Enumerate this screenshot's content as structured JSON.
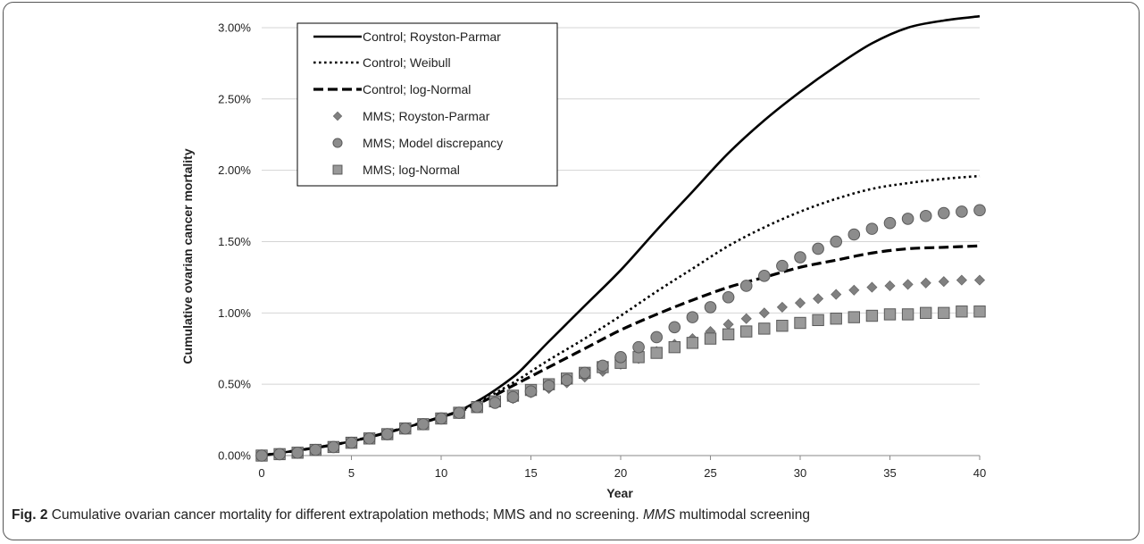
{
  "caption": {
    "label": "Fig. 2",
    "text": "Cumulative ovarian cancer mortality for different extrapolation methods; MMS and no screening.",
    "abbr": "MMS",
    "abbr_def": "multimodal screening"
  },
  "chart_data": {
    "type": "line",
    "title": "",
    "xlabel": "Year",
    "ylabel": "Cumulative ovarian cancer mortality",
    "xlim": [
      0,
      40
    ],
    "ylim": [
      0,
      0.031
    ],
    "x_ticks": [
      0,
      5,
      10,
      15,
      20,
      25,
      30,
      35,
      40
    ],
    "y_ticks": [
      0,
      0.005,
      0.01,
      0.015,
      0.02,
      0.025,
      0.03
    ],
    "y_tick_labels": [
      "0.00%",
      "0.50%",
      "1.00%",
      "1.50%",
      "2.00%",
      "2.50%",
      "3.00%"
    ],
    "grid": "horizontal",
    "legend_position": "top-left",
    "series": [
      {
        "name": "Control; Royston-Parmar",
        "style": "solid-line",
        "color": "#000000",
        "x": [
          0,
          5,
          10,
          12,
          14,
          15,
          16,
          18,
          20,
          22,
          24,
          26,
          28,
          30,
          32,
          34,
          36,
          38,
          40
        ],
        "y": [
          0,
          0.001,
          0.0027,
          0.0038,
          0.0055,
          0.0067,
          0.008,
          0.0105,
          0.013,
          0.0158,
          0.0185,
          0.0212,
          0.0235,
          0.0255,
          0.0273,
          0.0289,
          0.03,
          0.0305,
          0.0308
        ]
      },
      {
        "name": "Control; Weibull",
        "style": "dotted-line",
        "color": "#000000",
        "x": [
          0,
          5,
          10,
          12,
          14,
          16,
          18,
          20,
          22,
          24,
          26,
          28,
          30,
          32,
          34,
          36,
          38,
          40
        ],
        "y": [
          0,
          0.001,
          0.0027,
          0.0037,
          0.0051,
          0.0067,
          0.0082,
          0.0098,
          0.0115,
          0.0131,
          0.0147,
          0.016,
          0.0171,
          0.018,
          0.0187,
          0.0191,
          0.0194,
          0.0196
        ]
      },
      {
        "name": "Control; log-Normal",
        "style": "dashed-line",
        "color": "#000000",
        "x": [
          0,
          5,
          10,
          12,
          14,
          16,
          18,
          20,
          22,
          24,
          26,
          28,
          30,
          32,
          34,
          36,
          38,
          40
        ],
        "y": [
          0,
          0.001,
          0.0027,
          0.0036,
          0.0049,
          0.0062,
          0.0075,
          0.0088,
          0.0099,
          0.0109,
          0.0118,
          0.0125,
          0.0132,
          0.0137,
          0.0142,
          0.0145,
          0.0146,
          0.0147
        ]
      },
      {
        "name": "MMS; Royston-Parmar",
        "style": "diamond-marker",
        "color": "#808080",
        "x": [
          0,
          1,
          2,
          3,
          4,
          5,
          6,
          7,
          8,
          9,
          10,
          11,
          12,
          13,
          14,
          15,
          16,
          17,
          18,
          19,
          20,
          21,
          22,
          23,
          24,
          25,
          26,
          27,
          28,
          29,
          30,
          31,
          32,
          33,
          34,
          35,
          36,
          37,
          38,
          39,
          40
        ],
        "y": [
          0,
          0.0001,
          0.0002,
          0.0004,
          0.0006,
          0.0009,
          0.0012,
          0.0015,
          0.0019,
          0.0022,
          0.0026,
          0.003,
          0.0034,
          0.0037,
          0.004,
          0.0044,
          0.0047,
          0.0051,
          0.0055,
          0.0059,
          0.0064,
          0.0068,
          0.0073,
          0.0078,
          0.0082,
          0.0087,
          0.0092,
          0.0096,
          0.01,
          0.0104,
          0.0107,
          0.011,
          0.0113,
          0.0116,
          0.0118,
          0.0119,
          0.012,
          0.0121,
          0.0122,
          0.0123,
          0.0123
        ]
      },
      {
        "name": "MMS; Model discrepancy",
        "style": "circle-marker",
        "color": "#8c8c8c",
        "x": [
          0,
          1,
          2,
          3,
          4,
          5,
          6,
          7,
          8,
          9,
          10,
          11,
          12,
          13,
          14,
          15,
          16,
          17,
          18,
          19,
          20,
          21,
          22,
          23,
          24,
          25,
          26,
          27,
          28,
          29,
          30,
          31,
          32,
          33,
          34,
          35,
          36,
          37,
          38,
          39,
          40
        ],
        "y": [
          0,
          0.0001,
          0.0002,
          0.0004,
          0.0006,
          0.0009,
          0.0012,
          0.0015,
          0.0019,
          0.0022,
          0.0026,
          0.003,
          0.0034,
          0.0037,
          0.0041,
          0.0045,
          0.0049,
          0.0053,
          0.0058,
          0.0063,
          0.0069,
          0.0076,
          0.0083,
          0.009,
          0.0097,
          0.0104,
          0.0111,
          0.0119,
          0.0126,
          0.0133,
          0.0139,
          0.0145,
          0.015,
          0.0155,
          0.0159,
          0.0163,
          0.0166,
          0.0168,
          0.017,
          0.0171,
          0.0172
        ]
      },
      {
        "name": "MMS; log-Normal",
        "style": "square-marker",
        "color": "#999999",
        "x": [
          0,
          1,
          2,
          3,
          4,
          5,
          6,
          7,
          8,
          9,
          10,
          11,
          12,
          13,
          14,
          15,
          16,
          17,
          18,
          19,
          20,
          21,
          22,
          23,
          24,
          25,
          26,
          27,
          28,
          29,
          30,
          31,
          32,
          33,
          34,
          35,
          36,
          37,
          38,
          39,
          40
        ],
        "y": [
          0,
          0.0001,
          0.0002,
          0.0004,
          0.0006,
          0.0009,
          0.0012,
          0.0015,
          0.0019,
          0.0022,
          0.0026,
          0.003,
          0.0034,
          0.0038,
          0.0042,
          0.0046,
          0.005,
          0.0054,
          0.0058,
          0.0062,
          0.0065,
          0.0069,
          0.0072,
          0.0076,
          0.0079,
          0.0082,
          0.0085,
          0.0087,
          0.0089,
          0.0091,
          0.0093,
          0.0095,
          0.0096,
          0.0097,
          0.0098,
          0.0099,
          0.0099,
          0.01,
          0.01,
          0.0101,
          0.0101
        ]
      }
    ]
  }
}
